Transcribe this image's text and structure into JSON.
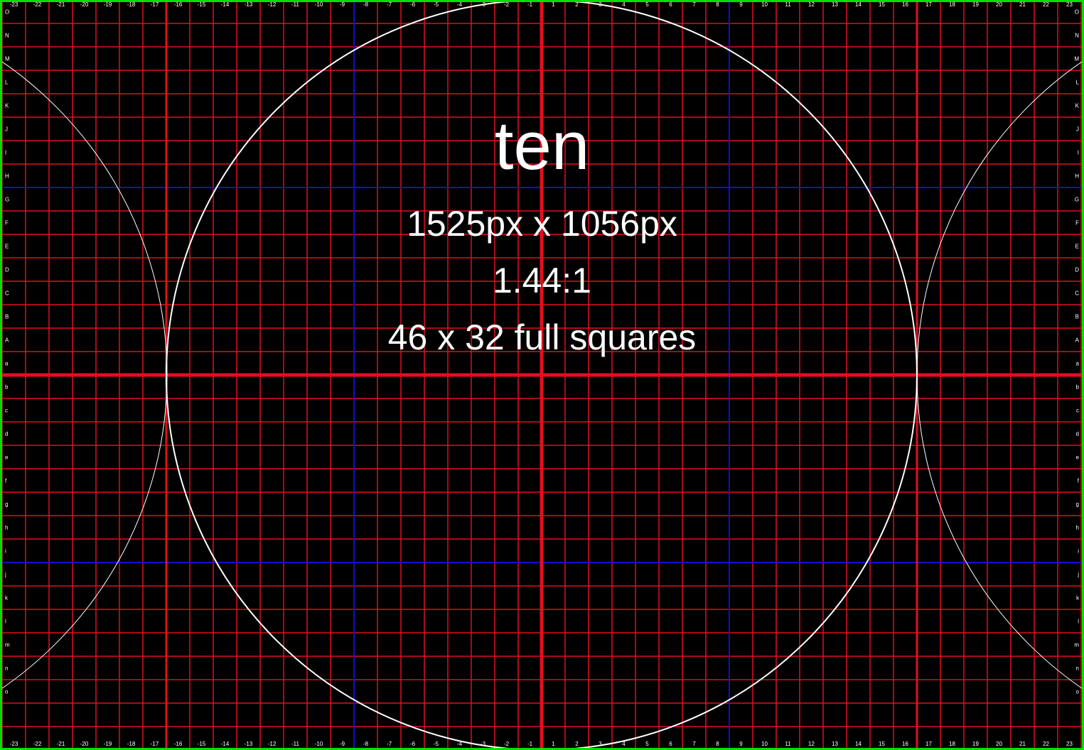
{
  "title": "ten",
  "dimensions_text": "1525px x 1056px",
  "ratio_text": "1.44:1",
  "squares_text": "46 x 32 full squares",
  "column_labels": [
    "-23",
    "-22",
    "-21",
    "-20",
    "-19",
    "-18",
    "-17",
    "-16",
    "-15",
    "-14",
    "-13",
    "-12",
    "-11",
    "-10",
    "-9",
    "-8",
    "-7",
    "-6",
    "-5",
    "-4",
    "-3",
    "-2",
    "-1",
    "1",
    "2",
    "3",
    "4",
    "5",
    "6",
    "7",
    "8",
    "9",
    "10",
    "11",
    "12",
    "13",
    "14",
    "15",
    "16",
    "17",
    "18",
    "19",
    "20",
    "21",
    "22",
    "23"
  ],
  "row_labels": [
    "O",
    "N",
    "M",
    "L",
    "K",
    "J",
    "I",
    "H",
    "G",
    "F",
    "E",
    "D",
    "C",
    "B",
    "A",
    "a",
    "b",
    "c",
    "d",
    "e",
    "f",
    "g",
    "h",
    "i",
    "j",
    "k",
    "l",
    "m",
    "n",
    "o"
  ],
  "colors": {
    "background": "#000000",
    "grid_line": "#e0101e",
    "accent_line": "#1010d0",
    "circle": "#ffffff",
    "border": "#00e000",
    "text": "#ffffff"
  }
}
